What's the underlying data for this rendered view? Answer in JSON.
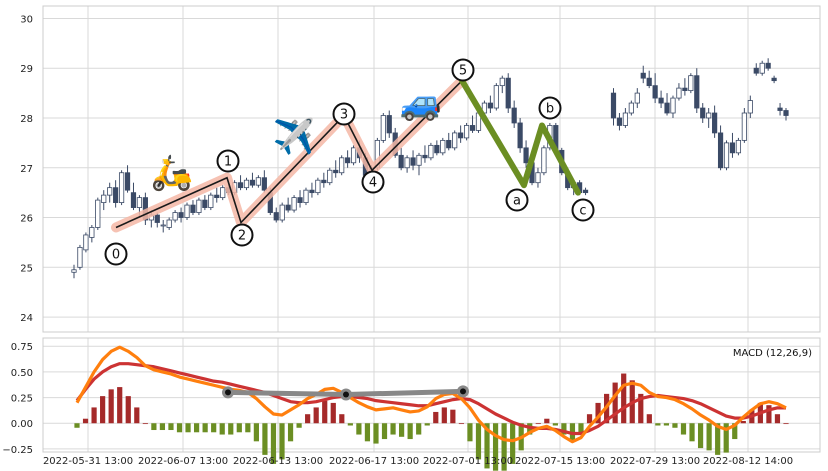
{
  "chart_data": [
    {
      "type": "candlestick",
      "title": "",
      "xlabel": "",
      "ylabel": "",
      "ylim": [
        23.7,
        30.25
      ],
      "y_ticks": [
        "24",
        "25",
        "26",
        "27",
        "28",
        "29",
        "30"
      ],
      "grid": true,
      "colors": {
        "up": "#ffffff",
        "down": "#3b4a66",
        "wick": "#3b4a66"
      },
      "ohlc": [
        [
          24.9,
          25.05,
          24.78,
          24.95
        ],
        [
          25.0,
          25.45,
          24.95,
          25.4
        ],
        [
          25.35,
          25.7,
          25.3,
          25.65
        ],
        [
          25.6,
          25.85,
          25.5,
          25.8
        ],
        [
          25.8,
          26.4,
          25.75,
          26.35
        ],
        [
          26.3,
          26.55,
          26.15,
          26.45
        ],
        [
          26.45,
          26.7,
          26.3,
          26.6
        ],
        [
          26.6,
          26.75,
          26.2,
          26.3
        ],
        [
          26.3,
          26.95,
          26.25,
          26.9
        ],
        [
          26.9,
          27.05,
          26.5,
          26.55
        ],
        [
          26.5,
          26.7,
          26.15,
          26.2
        ],
        [
          26.2,
          26.45,
          26.0,
          26.4
        ],
        [
          26.4,
          26.5,
          25.85,
          25.95
        ],
        [
          25.95,
          26.15,
          25.8,
          26.05
        ],
        [
          26.05,
          26.1,
          25.8,
          25.9
        ],
        [
          25.85,
          25.95,
          25.7,
          25.85
        ],
        [
          25.8,
          26.0,
          25.75,
          25.95
        ],
        [
          25.95,
          26.15,
          25.9,
          26.1
        ],
        [
          26.1,
          26.2,
          25.9,
          26.0
        ],
        [
          26.0,
          26.3,
          25.95,
          26.25
        ],
        [
          26.25,
          26.35,
          26.05,
          26.1
        ],
        [
          26.1,
          26.4,
          26.05,
          26.35
        ],
        [
          26.35,
          26.45,
          26.15,
          26.2
        ],
        [
          26.2,
          26.5,
          26.15,
          26.45
        ],
        [
          26.45,
          26.6,
          26.3,
          26.4
        ],
        [
          26.4,
          26.65,
          26.35,
          26.6
        ],
        [
          26.6,
          26.7,
          26.45,
          26.5
        ],
        [
          26.5,
          26.75,
          26.45,
          26.7
        ],
        [
          26.7,
          26.85,
          26.55,
          26.6
        ],
        [
          26.6,
          26.8,
          26.55,
          26.75
        ],
        [
          26.75,
          26.9,
          26.6,
          26.65
        ],
        [
          26.65,
          26.85,
          26.6,
          26.8
        ],
        [
          26.8,
          26.95,
          26.5,
          26.55
        ],
        [
          26.5,
          26.6,
          26.05,
          26.1
        ],
        [
          26.1,
          26.2,
          25.9,
          25.95
        ],
        [
          25.95,
          26.3,
          25.9,
          26.25
        ],
        [
          26.25,
          26.4,
          26.1,
          26.15
        ],
        [
          26.15,
          26.45,
          26.1,
          26.4
        ],
        [
          26.4,
          26.55,
          26.2,
          26.3
        ],
        [
          26.3,
          26.6,
          26.25,
          26.55
        ],
        [
          26.55,
          26.7,
          26.4,
          26.5
        ],
        [
          26.5,
          26.8,
          26.45,
          26.75
        ],
        [
          26.75,
          26.9,
          26.6,
          26.7
        ],
        [
          26.7,
          27.0,
          26.65,
          26.95
        ],
        [
          26.95,
          27.15,
          26.8,
          26.9
        ],
        [
          26.9,
          27.25,
          26.85,
          27.2
        ],
        [
          27.2,
          27.35,
          27.0,
          27.1
        ],
        [
          27.1,
          27.45,
          27.05,
          27.4
        ],
        [
          27.4,
          27.55,
          27.1,
          27.2
        ],
        [
          27.2,
          27.3,
          26.8,
          26.85
        ],
        [
          26.85,
          27.05,
          26.75,
          27.0
        ],
        [
          27.0,
          27.6,
          26.95,
          27.55
        ],
        [
          27.55,
          28.1,
          27.5,
          28.05
        ],
        [
          28.05,
          28.15,
          27.6,
          27.7
        ],
        [
          27.7,
          27.8,
          27.2,
          27.25
        ],
        [
          27.25,
          27.4,
          26.95,
          27.0
        ],
        [
          27.0,
          27.25,
          26.9,
          27.2
        ],
        [
          27.2,
          27.35,
          26.95,
          27.05
        ],
        [
          27.05,
          27.3,
          26.85,
          27.25
        ],
        [
          27.25,
          27.45,
          27.1,
          27.2
        ],
        [
          27.2,
          27.5,
          27.15,
          27.45
        ],
        [
          27.45,
          27.55,
          27.25,
          27.3
        ],
        [
          27.3,
          27.6,
          27.25,
          27.55
        ],
        [
          27.55,
          27.7,
          27.35,
          27.4
        ],
        [
          27.4,
          27.75,
          27.35,
          27.7
        ],
        [
          27.7,
          27.85,
          27.5,
          27.6
        ],
        [
          27.6,
          27.9,
          27.55,
          27.85
        ],
        [
          27.85,
          28.05,
          27.7,
          27.75
        ],
        [
          27.75,
          28.15,
          27.7,
          28.1
        ],
        [
          28.1,
          28.35,
          28.0,
          28.3
        ],
        [
          28.3,
          28.45,
          28.1,
          28.2
        ],
        [
          28.2,
          28.7,
          28.15,
          28.65
        ],
        [
          28.65,
          28.85,
          28.5,
          28.8
        ],
        [
          28.8,
          28.9,
          28.1,
          28.2
        ],
        [
          28.2,
          28.35,
          27.8,
          27.9
        ],
        [
          27.9,
          28.0,
          27.3,
          27.4
        ],
        [
          27.4,
          27.55,
          27.0,
          27.1
        ],
        [
          27.1,
          27.2,
          26.65,
          26.7
        ],
        [
          26.7,
          27.0,
          26.6,
          26.9
        ],
        [
          26.9,
          27.45,
          26.85,
          27.4
        ],
        [
          27.4,
          27.9,
          27.35,
          27.85
        ],
        [
          27.85,
          27.9,
          27.3,
          27.35
        ],
        [
          27.35,
          27.4,
          26.85,
          26.9
        ],
        [
          26.9,
          27.0,
          26.55,
          26.6
        ],
        [
          26.6,
          26.75,
          26.45,
          26.7
        ],
        [
          26.7,
          26.75,
          26.45,
          26.5
        ],
        [
          26.55,
          26.6,
          26.45,
          26.5
        ],
        [
          28.5,
          28.6,
          27.85,
          28.0
        ],
        [
          28.0,
          28.1,
          27.75,
          27.85
        ],
        [
          27.85,
          28.2,
          27.8,
          28.1
        ],
        [
          28.1,
          28.35,
          28.05,
          28.3
        ],
        [
          28.3,
          28.6,
          28.2,
          28.5
        ],
        [
          28.9,
          29.05,
          28.7,
          28.8
        ],
        [
          28.8,
          28.95,
          28.6,
          28.65
        ],
        [
          28.65,
          28.9,
          28.3,
          28.4
        ],
        [
          28.4,
          28.55,
          28.2,
          28.3
        ],
        [
          28.3,
          28.5,
          28.05,
          28.1
        ],
        [
          28.1,
          28.45,
          28.0,
          28.4
        ],
        [
          28.4,
          28.7,
          28.35,
          28.6
        ],
        [
          28.6,
          28.8,
          28.45,
          28.55
        ],
        [
          28.55,
          28.9,
          28.5,
          28.85
        ],
        [
          28.85,
          29.0,
          28.1,
          28.2
        ],
        [
          28.2,
          28.3,
          27.9,
          28.0
        ],
        [
          28.0,
          28.2,
          27.8,
          28.1
        ],
        [
          28.1,
          28.25,
          27.6,
          27.7
        ],
        [
          27.7,
          27.85,
          26.95,
          27.0
        ],
        [
          27.0,
          27.55,
          26.95,
          27.5
        ],
        [
          27.5,
          27.7,
          27.2,
          27.3
        ],
        [
          27.3,
          27.6,
          27.25,
          27.55
        ],
        [
          27.55,
          28.2,
          27.5,
          28.1
        ],
        [
          28.1,
          28.45,
          28.0,
          28.35
        ],
        [
          29.0,
          29.1,
          28.85,
          28.9
        ],
        [
          28.9,
          29.15,
          28.85,
          29.1
        ],
        [
          29.1,
          29.2,
          28.95,
          29.0
        ],
        [
          28.8,
          28.85,
          28.7,
          28.75
        ],
        [
          28.2,
          28.3,
          28.05,
          28.15
        ],
        [
          28.15,
          28.2,
          27.95,
          28.05
        ]
      ],
      "wave_path": [
        {
          "label": "0",
          "value": 25.8
        },
        {
          "label": "1",
          "value": 26.8
        },
        {
          "label": "2",
          "value": 25.9
        },
        {
          "label": "3",
          "value": 28.05
        },
        {
          "label": "4",
          "value": 26.95
        },
        {
          "label": "5",
          "value": 28.75
        },
        {
          "label": "a",
          "value": 26.65
        },
        {
          "label": "b",
          "value": 27.85
        },
        {
          "label": "c",
          "value": 26.5
        }
      ],
      "emojis": [
        {
          "name": "scooter",
          "glyph": "🛵"
        },
        {
          "name": "airplane",
          "glyph": "✈️"
        },
        {
          "name": "car",
          "glyph": "🚙"
        }
      ]
    },
    {
      "type": "line",
      "title": "MACD (12,26,9)",
      "ylim": [
        -0.28,
        0.83
      ],
      "y_ticks": [
        "−0.25",
        "0.00",
        "0.25",
        "0.50",
        "0.75"
      ],
      "x_ticks": [
        "2022-05-31 13:00",
        "2022-06-07 13:00",
        "2022-06-13 13:00",
        "2022-06-17 13:00",
        "2022-07-01 13:00",
        "2022-07-15 13:00",
        "2022-07-29 13:00",
        "2022-08-12 14:00"
      ],
      "colors": {
        "macd": "#ff7f0e",
        "signal": "#cc3333",
        "hist_pos": "#a52a2a",
        "hist_neg": "#6b8e23",
        "divergence": "#888888"
      },
      "macd": [
        0.2,
        0.35,
        0.5,
        0.62,
        0.7,
        0.74,
        0.7,
        0.64,
        0.56,
        0.52,
        0.5,
        0.48,
        0.45,
        0.43,
        0.41,
        0.39,
        0.37,
        0.35,
        0.33,
        0.32,
        0.3,
        0.24,
        0.16,
        0.09,
        0.08,
        0.13,
        0.18,
        0.24,
        0.28,
        0.33,
        0.34,
        0.3,
        0.25,
        0.2,
        0.16,
        0.13,
        0.14,
        0.15,
        0.13,
        0.11,
        0.12,
        0.16,
        0.24,
        0.28,
        0.29,
        0.24,
        0.15,
        0.03,
        -0.06,
        -0.12,
        -0.16,
        -0.17,
        -0.14,
        -0.09,
        -0.05,
        -0.03,
        -0.07,
        -0.13,
        -0.18,
        -0.14,
        -0.03,
        0.06,
        0.16,
        0.27,
        0.37,
        0.39,
        0.37,
        0.3,
        0.26,
        0.25,
        0.23,
        0.19,
        0.14,
        0.08,
        0.03,
        -0.03,
        -0.06,
        -0.02,
        0.06,
        0.13,
        0.19,
        0.21,
        0.19,
        0.15
      ],
      "signal": [
        0.22,
        0.33,
        0.43,
        0.5,
        0.55,
        0.58,
        0.58,
        0.57,
        0.56,
        0.55,
        0.53,
        0.51,
        0.49,
        0.47,
        0.45,
        0.43,
        0.41,
        0.4,
        0.38,
        0.36,
        0.34,
        0.32,
        0.3,
        0.27,
        0.24,
        0.21,
        0.2,
        0.2,
        0.21,
        0.23,
        0.25,
        0.26,
        0.26,
        0.25,
        0.24,
        0.22,
        0.21,
        0.2,
        0.19,
        0.18,
        0.17,
        0.17,
        0.19,
        0.21,
        0.23,
        0.24,
        0.23,
        0.19,
        0.14,
        0.09,
        0.05,
        0.01,
        -0.02,
        -0.04,
        -0.05,
        -0.05,
        -0.06,
        -0.08,
        -0.1,
        -0.1,
        -0.07,
        -0.03,
        0.03,
        0.09,
        0.15,
        0.2,
        0.24,
        0.26,
        0.27,
        0.26,
        0.25,
        0.24,
        0.22,
        0.19,
        0.15,
        0.11,
        0.07,
        0.05,
        0.05,
        0.07,
        0.1,
        0.13,
        0.15,
        0.15
      ],
      "divergence_points": [
        {
          "date": "2022-06-10 13:00",
          "value": 0.3
        },
        {
          "date": "2022-06-16 13:00",
          "value": 0.28
        },
        {
          "date": "2022-06-24 13:00",
          "value": 0.31
        }
      ]
    }
  ]
}
